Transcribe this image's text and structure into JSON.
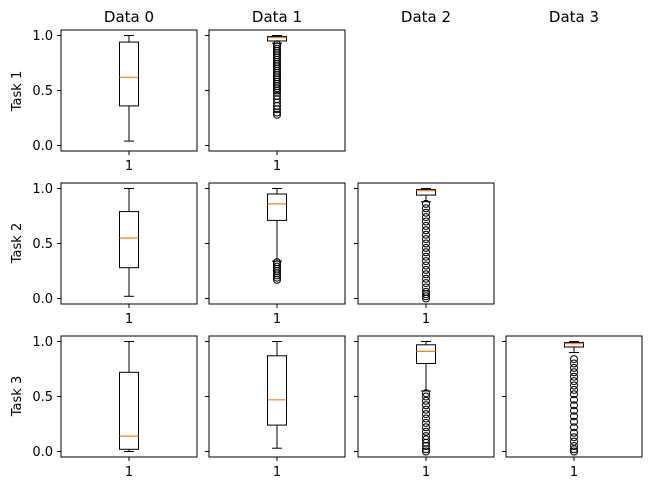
{
  "figure": {
    "column_titles": [
      "Data 0",
      "Data 1",
      "Data 2",
      "Data 3"
    ],
    "row_labels": [
      "Task 1",
      "Task 2",
      "Task 3"
    ],
    "y_tick_labels": [
      "0.0",
      "0.5",
      "1.0"
    ],
    "y_tick_values": [
      0.0,
      0.5,
      1.0
    ],
    "x_tick_label": "1",
    "colors": {
      "box": "#000000",
      "median": "#ff7f0e",
      "outlier": "#000000"
    }
  },
  "chart_data": [
    {
      "type": "box",
      "row": 0,
      "col": 0,
      "task": "Task 1",
      "dataset": "Data 0",
      "ylim": [
        -0.05,
        1.05
      ],
      "stats": {
        "whislo": 0.04,
        "q1": 0.36,
        "median": 0.62,
        "q3": 0.94,
        "whishi": 1.0
      },
      "outliers": []
    },
    {
      "type": "box",
      "row": 0,
      "col": 1,
      "task": "Task 1",
      "dataset": "Data 1",
      "ylim": [
        -0.05,
        1.05
      ],
      "stats": {
        "whislo": 0.93,
        "q1": 0.95,
        "median": 0.98,
        "q3": 0.99,
        "whishi": 1.0
      },
      "outliers": [
        0.28,
        0.3,
        0.33,
        0.36,
        0.39,
        0.42,
        0.45,
        0.48,
        0.5,
        0.52,
        0.54,
        0.56,
        0.58,
        0.6,
        0.62,
        0.64,
        0.66,
        0.68,
        0.7,
        0.72,
        0.74,
        0.76,
        0.78,
        0.8,
        0.82,
        0.84,
        0.86,
        0.88,
        0.9,
        0.92
      ]
    },
    {
      "type": "box",
      "row": 1,
      "col": 0,
      "task": "Task 2",
      "dataset": "Data 0",
      "ylim": [
        -0.05,
        1.05
      ],
      "stats": {
        "whislo": 0.02,
        "q1": 0.28,
        "median": 0.55,
        "q3": 0.79,
        "whishi": 1.0
      },
      "outliers": []
    },
    {
      "type": "box",
      "row": 1,
      "col": 1,
      "task": "Task 2",
      "dataset": "Data 1",
      "ylim": [
        -0.05,
        1.05
      ],
      "stats": {
        "whislo": 0.34,
        "q1": 0.71,
        "median": 0.86,
        "q3": 0.95,
        "whishi": 1.0
      },
      "outliers": [
        0.17,
        0.19,
        0.21,
        0.23,
        0.25,
        0.27,
        0.29,
        0.31,
        0.33
      ]
    },
    {
      "type": "box",
      "row": 1,
      "col": 2,
      "task": "Task 2",
      "dataset": "Data 2",
      "ylim": [
        -0.05,
        1.05
      ],
      "stats": {
        "whislo": 0.88,
        "q1": 0.94,
        "median": 0.98,
        "q3": 0.99,
        "whishi": 1.0
      },
      "outliers": [
        0.0,
        0.02,
        0.04,
        0.06,
        0.1,
        0.14,
        0.18,
        0.22,
        0.26,
        0.3,
        0.34,
        0.38,
        0.42,
        0.46,
        0.5,
        0.54,
        0.58,
        0.62,
        0.66,
        0.7,
        0.74,
        0.78,
        0.82,
        0.86
      ]
    },
    {
      "type": "box",
      "row": 2,
      "col": 0,
      "task": "Task 3",
      "dataset": "Data 0",
      "ylim": [
        -0.05,
        1.05
      ],
      "stats": {
        "whislo": 0.0,
        "q1": 0.02,
        "median": 0.14,
        "q3": 0.72,
        "whishi": 1.0
      },
      "outliers": []
    },
    {
      "type": "box",
      "row": 2,
      "col": 1,
      "task": "Task 3",
      "dataset": "Data 1",
      "ylim": [
        -0.05,
        1.05
      ],
      "stats": {
        "whislo": 0.03,
        "q1": 0.24,
        "median": 0.47,
        "q3": 0.87,
        "whishi": 1.0
      },
      "outliers": []
    },
    {
      "type": "box",
      "row": 2,
      "col": 2,
      "task": "Task 3",
      "dataset": "Data 2",
      "ylim": [
        -0.05,
        1.05
      ],
      "stats": {
        "whislo": 0.55,
        "q1": 0.8,
        "median": 0.91,
        "q3": 0.97,
        "whishi": 1.0
      },
      "outliers": [
        0.0,
        0.02,
        0.05,
        0.08,
        0.11,
        0.14,
        0.18,
        0.22,
        0.26,
        0.3,
        0.34,
        0.38,
        0.42,
        0.46,
        0.5,
        0.53
      ]
    },
    {
      "type": "box",
      "row": 2,
      "col": 3,
      "task": "Task 3",
      "dataset": "Data 3",
      "ylim": [
        -0.05,
        1.05
      ],
      "stats": {
        "whislo": 0.9,
        "q1": 0.95,
        "median": 0.98,
        "q3": 0.99,
        "whishi": 1.0
      },
      "outliers": [
        0.0,
        0.02,
        0.05,
        0.09,
        0.13,
        0.17,
        0.22,
        0.27,
        0.32,
        0.37,
        0.42,
        0.47,
        0.52,
        0.56,
        0.6,
        0.64,
        0.68,
        0.72,
        0.76,
        0.8,
        0.84
      ]
    }
  ]
}
